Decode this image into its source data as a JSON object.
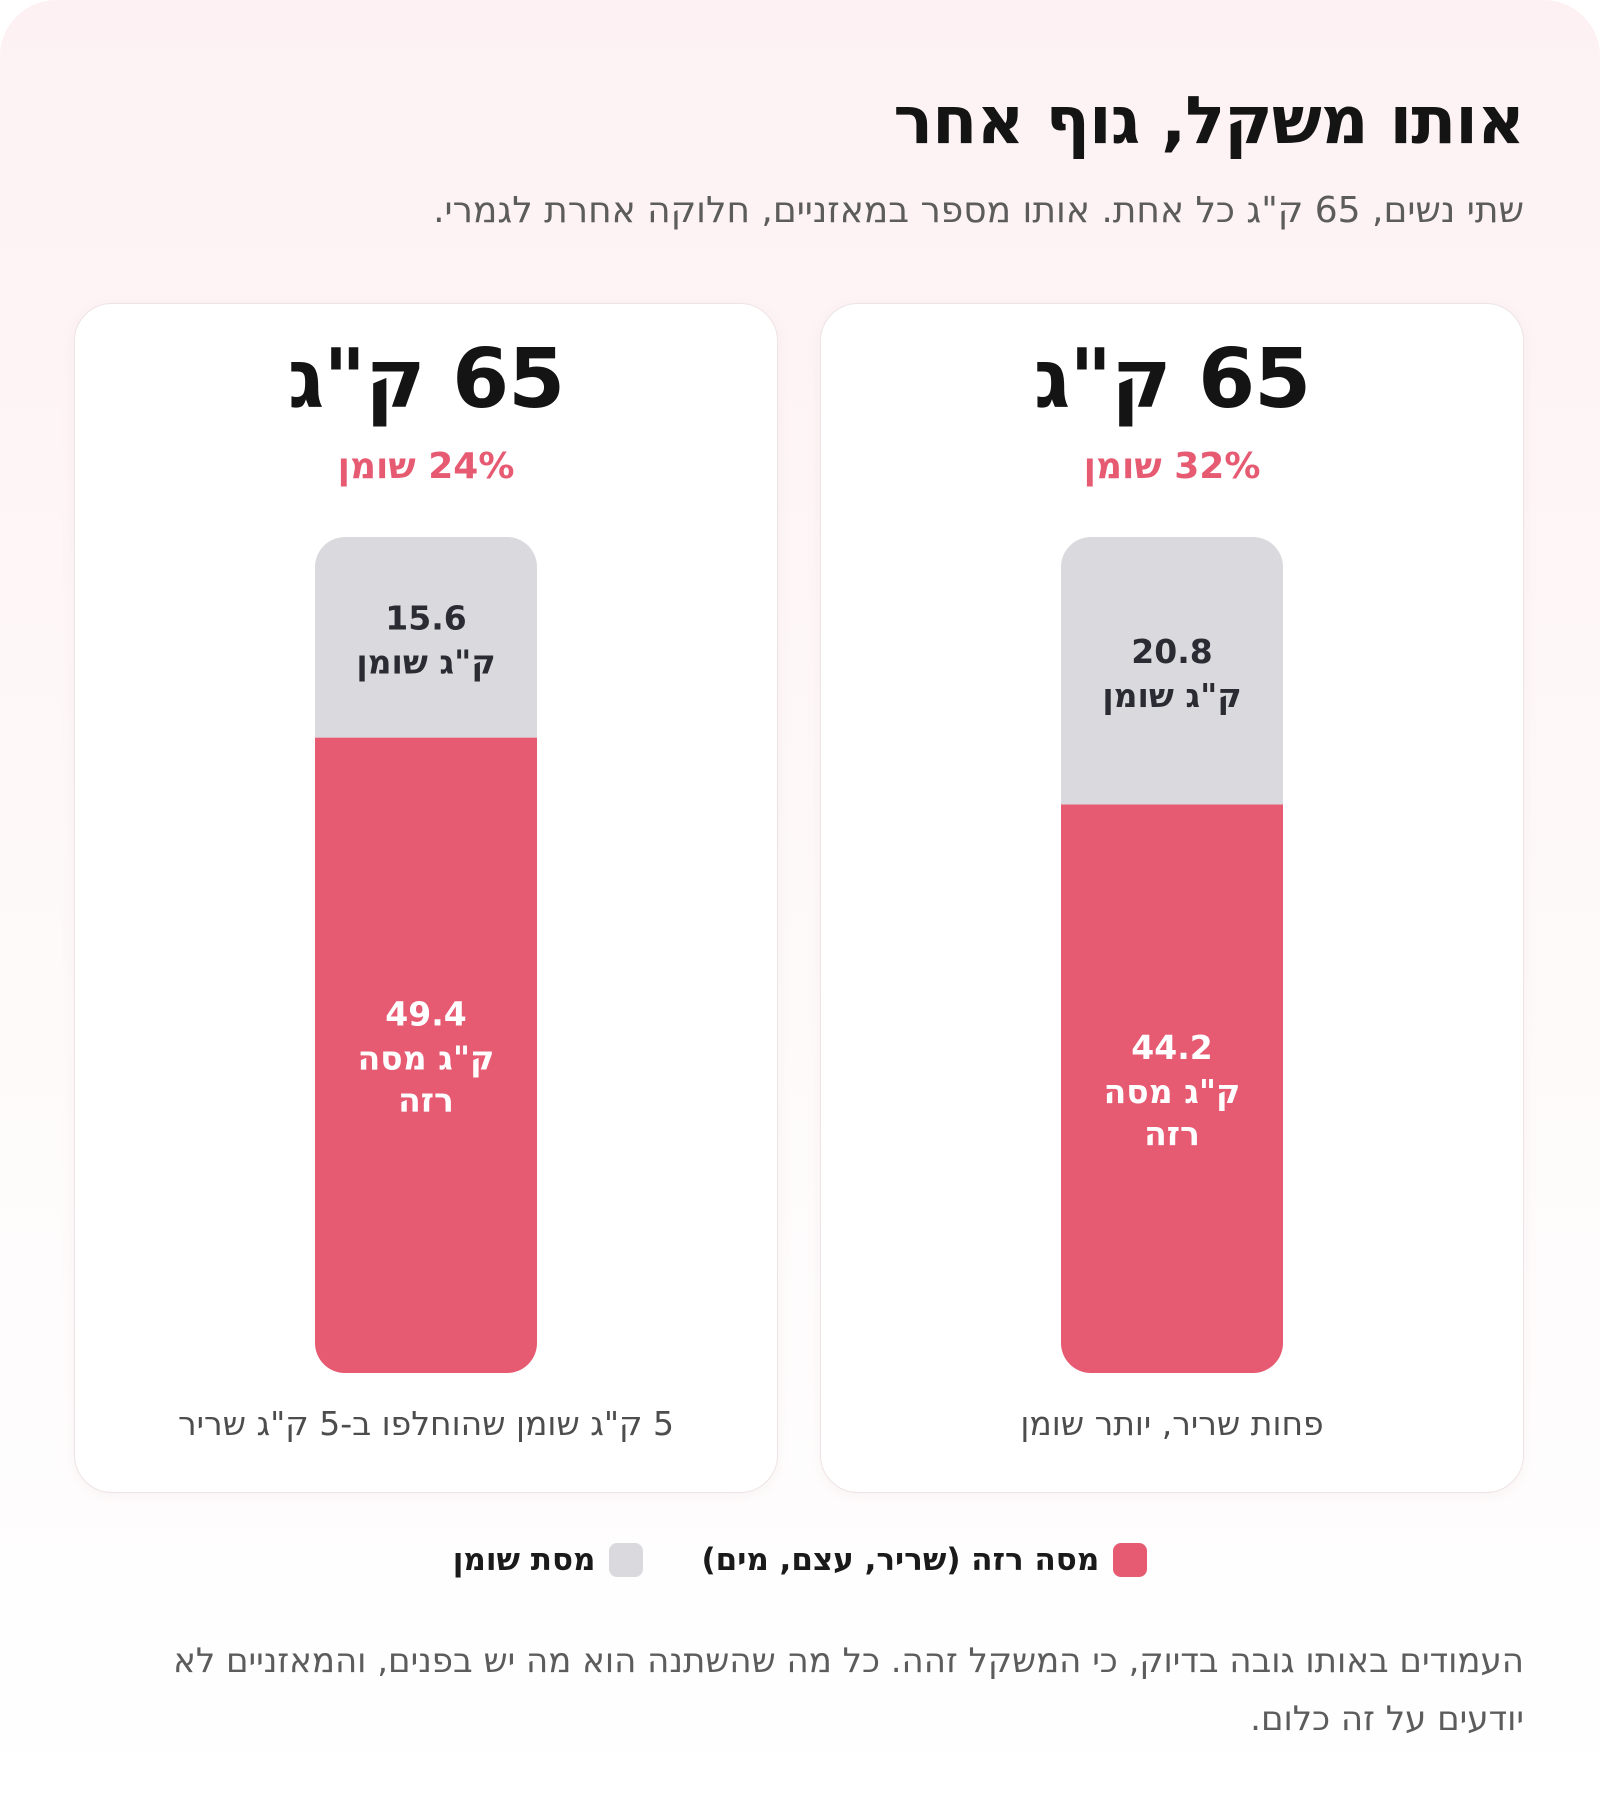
{
  "header": {
    "title": "אותו משקל, גוף אחר",
    "subtitle": "שתי נשים, 65 ק\"ג כל אחת. אותו מספר במאזניים, חלוקה אחרת לגמרי."
  },
  "cards": [
    {
      "total_label": "65 ק\"ג",
      "fat_percent_label": "32% שומן",
      "fat_value": "20.8",
      "fat_unit": "ק\"ג שומן",
      "lean_value": "44.2",
      "lean_unit_line1": "ק\"ג מסה",
      "lean_unit_line2": "רזה",
      "caption": "פחות שריר, יותר שומן"
    },
    {
      "total_label": "65 ק\"ג",
      "fat_percent_label": "24% שומן",
      "fat_value": "15.6",
      "fat_unit": "ק\"ג שומן",
      "lean_value": "49.4",
      "lean_unit_line1": "ק\"ג מסה",
      "lean_unit_line2": "רזה",
      "caption": "5 ק\"ג שומן שהוחלפו ב-5 ק\"ג שריר"
    }
  ],
  "legend": {
    "lean_label": "מסה רזה (שריר, עצם, מים)",
    "fat_label": "מסת שומן"
  },
  "footnote": "העמודים באותו גובה בדיוק, כי המשקל זהה. כל מה שהשתנה הוא מה יש בפנים, והמאזניים לא יודעים על זה כלום.",
  "colors": {
    "lean": "#e65a72",
    "fat": "#dadade",
    "accent": "#e65a72"
  },
  "chart_data": [
    {
      "type": "bar",
      "stacked": true,
      "categories": [
        "65 ק\"ג"
      ],
      "series": [
        {
          "name": "מסה רזה (שריר, עצם, מים)",
          "values": [
            44.2
          ]
        },
        {
          "name": "מסת שומן",
          "values": [
            20.8
          ]
        }
      ],
      "title": "65 ק\"ג",
      "ylim": [
        0,
        65
      ]
    },
    {
      "type": "bar",
      "stacked": true,
      "categories": [
        "65 ק\"ג"
      ],
      "series": [
        {
          "name": "מסה רזה (שריר, עצם, מים)",
          "values": [
            49.4
          ]
        },
        {
          "name": "מסת שומן",
          "values": [
            15.6
          ]
        }
      ],
      "title": "65 ק\"ג",
      "ylim": [
        0,
        65
      ]
    }
  ]
}
